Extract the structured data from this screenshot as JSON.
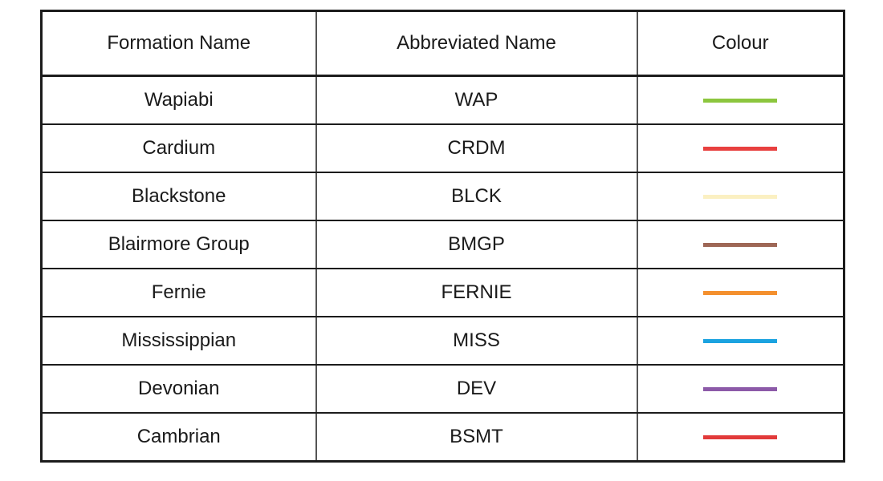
{
  "table": {
    "headers": {
      "formation": "Formation Name",
      "abbreviation": "Abbreviated Name",
      "colour": "Colour"
    },
    "rows": [
      {
        "formation": "Wapiabi",
        "abbreviation": "WAP",
        "colour": "#8cc63e"
      },
      {
        "formation": "Cardium",
        "abbreviation": "CRDM",
        "colour": "#e8403f"
      },
      {
        "formation": "Blackstone",
        "abbreviation": "BLCK",
        "colour": "#fbf0c2"
      },
      {
        "formation": "Blairmore Group",
        "abbreviation": "BMGP",
        "colour": "#9e6756"
      },
      {
        "formation": "Fernie",
        "abbreviation": "FERNIE",
        "colour": "#f4902e"
      },
      {
        "formation": "Mississippian",
        "abbreviation": "MISS",
        "colour": "#1ba3e0"
      },
      {
        "formation": "Devonian",
        "abbreviation": "DEV",
        "colour": "#8c5aa8"
      },
      {
        "formation": "Cambrian",
        "abbreviation": "BSMT",
        "colour": "#e23a3a"
      }
    ]
  }
}
